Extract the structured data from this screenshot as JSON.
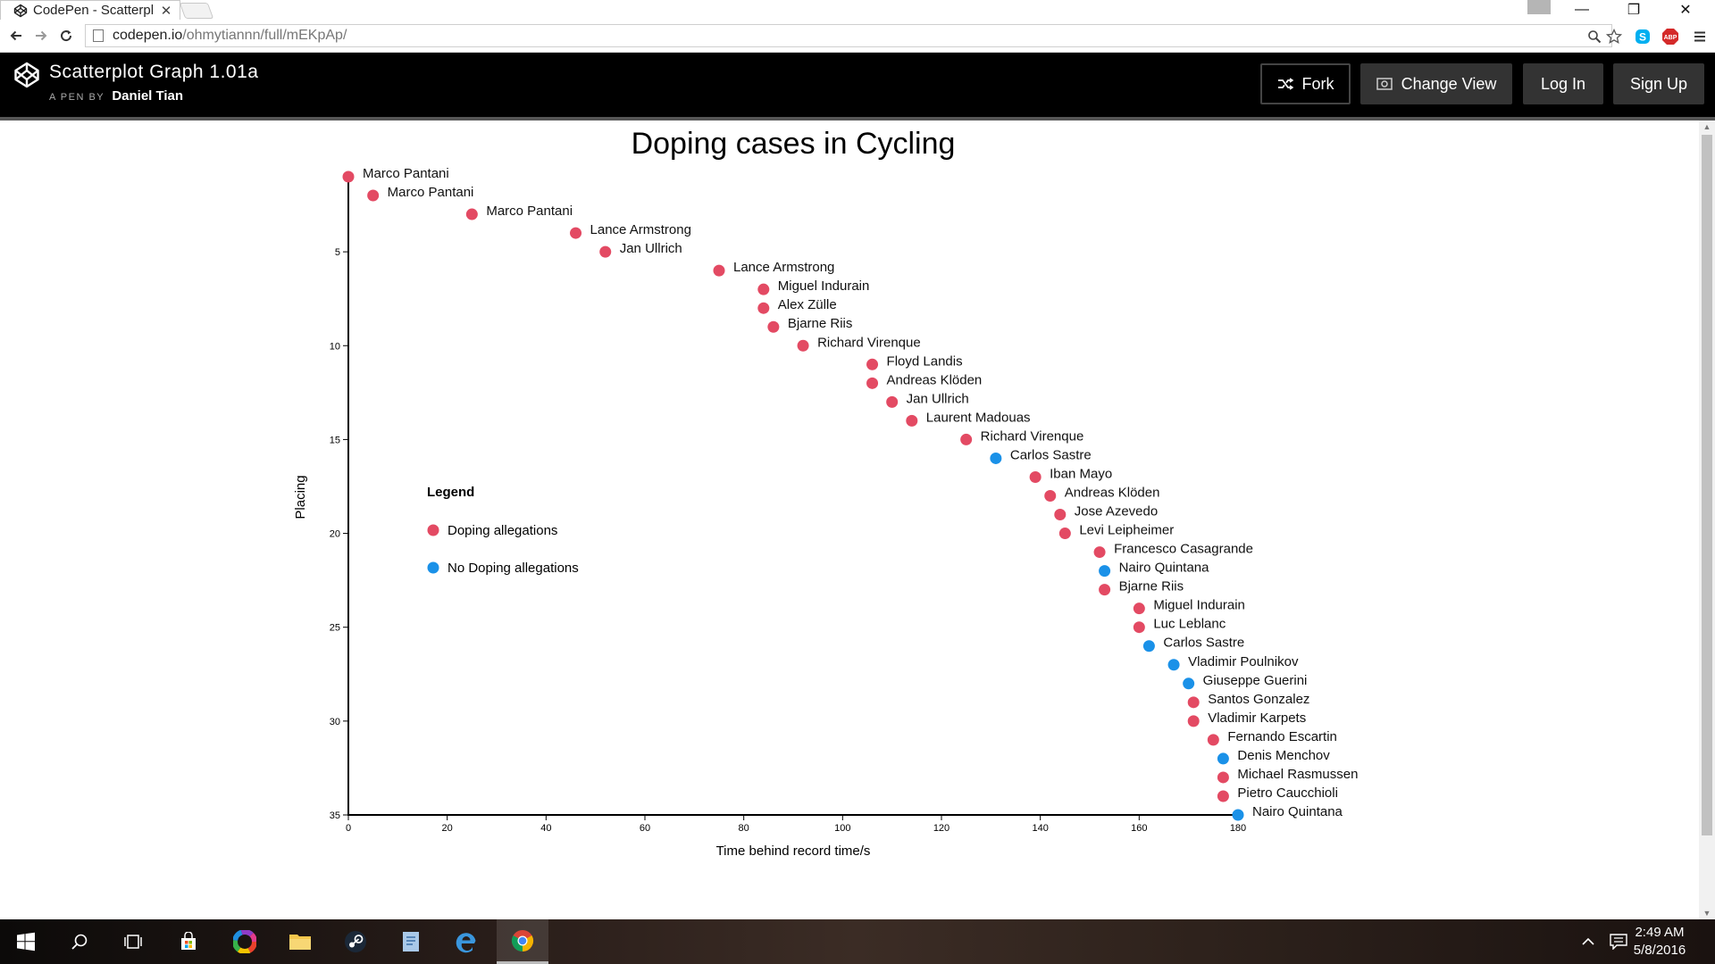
{
  "browser": {
    "tab_title": "CodePen - Scatterpl",
    "tab_close": "✕",
    "url_host": "codepen.io",
    "url_path": "/ohmytiannn/full/mEKpAp/",
    "window_controls": [
      "—",
      "❐",
      "✕"
    ]
  },
  "codepen": {
    "title": "Scatterplot Graph 1.01a",
    "by_prefix": "A PEN BY",
    "author": "Daniel Tian",
    "buttons": {
      "fork": "Fork",
      "change_view": "Change View",
      "login": "Log In",
      "signup": "Sign Up"
    }
  },
  "chart_data": {
    "type": "scatter",
    "title": "Doping cases in Cycling",
    "xlabel": "Time behind record time/s",
    "ylabel": "Placing",
    "xlim": [
      0,
      180
    ],
    "ylim": [
      35,
      1
    ],
    "xticks": [
      0,
      20,
      40,
      60,
      80,
      100,
      120,
      140,
      160,
      180
    ],
    "yticks": [
      5,
      10,
      15,
      20,
      25,
      30,
      35
    ],
    "y_inverted": true,
    "colors": {
      "doping": "#e34a63",
      "clean": "#1a91e8"
    },
    "legend": {
      "title": "Legend",
      "items": [
        {
          "label": "Doping allegations",
          "key": "doping"
        },
        {
          "label": "No Doping allegations",
          "key": "clean"
        }
      ]
    },
    "points": [
      {
        "name": "Marco Pantani",
        "x": 0,
        "y": 1,
        "doping": true
      },
      {
        "name": "Marco Pantani",
        "x": 5,
        "y": 2,
        "doping": true
      },
      {
        "name": "Marco Pantani",
        "x": 25,
        "y": 3,
        "doping": true
      },
      {
        "name": "Lance Armstrong",
        "x": 46,
        "y": 4,
        "doping": true
      },
      {
        "name": "Jan Ullrich",
        "x": 52,
        "y": 5,
        "doping": true
      },
      {
        "name": "Lance Armstrong",
        "x": 75,
        "y": 6,
        "doping": true
      },
      {
        "name": "Miguel Indurain",
        "x": 84,
        "y": 7,
        "doping": true
      },
      {
        "name": "Alex Zülle",
        "x": 84,
        "y": 8,
        "doping": true
      },
      {
        "name": "Bjarne Riis",
        "x": 86,
        "y": 9,
        "doping": true
      },
      {
        "name": "Richard Virenque",
        "x": 92,
        "y": 10,
        "doping": true
      },
      {
        "name": "Floyd Landis",
        "x": 106,
        "y": 11,
        "doping": true
      },
      {
        "name": "Andreas Klöden",
        "x": 106,
        "y": 12,
        "doping": true
      },
      {
        "name": "Jan Ullrich",
        "x": 110,
        "y": 13,
        "doping": true
      },
      {
        "name": "Laurent Madouas",
        "x": 114,
        "y": 14,
        "doping": true
      },
      {
        "name": "Richard Virenque",
        "x": 125,
        "y": 15,
        "doping": true
      },
      {
        "name": "Carlos Sastre",
        "x": 131,
        "y": 16,
        "doping": false
      },
      {
        "name": "Iban Mayo",
        "x": 139,
        "y": 17,
        "doping": true
      },
      {
        "name": "Andreas Klöden",
        "x": 142,
        "y": 18,
        "doping": true
      },
      {
        "name": "Jose Azevedo",
        "x": 144,
        "y": 19,
        "doping": true
      },
      {
        "name": "Levi Leipheimer",
        "x": 145,
        "y": 20,
        "doping": true
      },
      {
        "name": "Francesco Casagrande",
        "x": 152,
        "y": 21,
        "doping": true
      },
      {
        "name": "Nairo Quintana",
        "x": 153,
        "y": 22,
        "doping": false
      },
      {
        "name": "Bjarne Riis",
        "x": 153,
        "y": 23,
        "doping": true
      },
      {
        "name": "Miguel Indurain",
        "x": 160,
        "y": 24,
        "doping": true
      },
      {
        "name": "Luc Leblanc",
        "x": 160,
        "y": 25,
        "doping": true
      },
      {
        "name": "Carlos Sastre",
        "x": 162,
        "y": 26,
        "doping": false
      },
      {
        "name": "Vladimir Poulnikov",
        "x": 167,
        "y": 27,
        "doping": false
      },
      {
        "name": "Giuseppe Guerini",
        "x": 170,
        "y": 28,
        "doping": false
      },
      {
        "name": "Santos Gonzalez",
        "x": 171,
        "y": 29,
        "doping": true
      },
      {
        "name": "Vladimir Karpets",
        "x": 171,
        "y": 30,
        "doping": true
      },
      {
        "name": "Fernando Escartin",
        "x": 175,
        "y": 31,
        "doping": true
      },
      {
        "name": "Denis Menchov",
        "x": 177,
        "y": 32,
        "doping": false
      },
      {
        "name": "Michael Rasmussen",
        "x": 177,
        "y": 33,
        "doping": true
      },
      {
        "name": "Pietro Caucchioli",
        "x": 177,
        "y": 34,
        "doping": true
      },
      {
        "name": "Nairo Quintana",
        "x": 180,
        "y": 35,
        "doping": false
      }
    ]
  },
  "taskbar": {
    "time": "2:49 AM",
    "date": "5/8/2016",
    "icons": [
      "windows-start-icon",
      "search-icon",
      "task-view-icon",
      "store-icon",
      "color-wheel-icon",
      "file-explorer-icon",
      "steam-icon",
      "notes-icon",
      "edge-icon",
      "chrome-icon"
    ]
  }
}
